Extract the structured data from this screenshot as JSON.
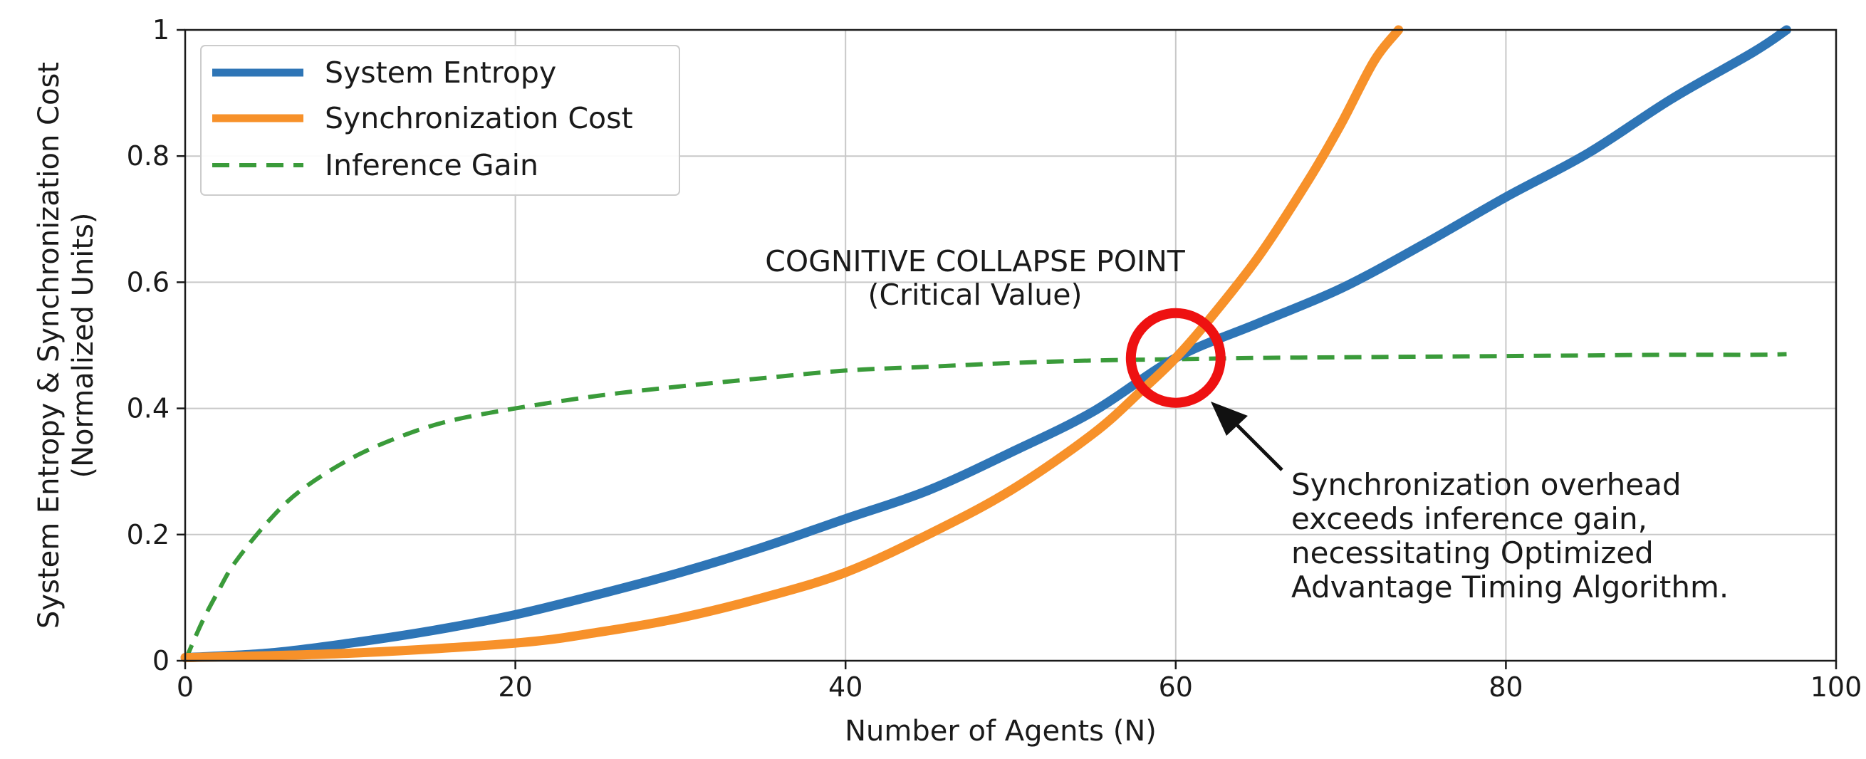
{
  "chart_data": {
    "type": "line",
    "xlabel": "Number of Agents (N)",
    "ylabel_line1": "System Entropy & Synchronization Cost",
    "ylabel_line2": "(Normalized Units)",
    "xlim": [
      0,
      100
    ],
    "ylim": [
      0,
      1
    ],
    "x_ticks": [
      0,
      20,
      40,
      60,
      80,
      100
    ],
    "y_ticks": [
      0,
      0.2,
      0.4,
      0.6,
      0.8,
      1
    ],
    "x_tick_labels": [
      "0",
      "20",
      "40",
      "60",
      "80",
      "100"
    ],
    "y_tick_labels": [
      "0",
      "0.2",
      "0.4",
      "0.6",
      "0.8",
      "1"
    ],
    "grid": true,
    "legend_position": "top-left",
    "series": [
      {
        "name": "System Entropy",
        "color": "#2e75b6",
        "style": "solid",
        "x": [
          0,
          5,
          10,
          15,
          20,
          25,
          30,
          35,
          40,
          45,
          50,
          55,
          60,
          65,
          70,
          75,
          80,
          85,
          90,
          95,
          97
        ],
        "y": [
          0.005,
          0.012,
          0.028,
          0.048,
          0.073,
          0.105,
          0.14,
          0.18,
          0.225,
          0.27,
          0.33,
          0.395,
          0.48,
          0.535,
          0.59,
          0.66,
          0.735,
          0.805,
          0.89,
          0.965,
          1.0
        ]
      },
      {
        "name": "Synchronization Cost",
        "color": "#f7912a",
        "style": "solid",
        "x": [
          0,
          10,
          20,
          25,
          30,
          35,
          40,
          45,
          50,
          55,
          58,
          60,
          62,
          65,
          68,
          70,
          72,
          73.5
        ],
        "y": [
          0.005,
          0.012,
          0.028,
          0.045,
          0.068,
          0.1,
          0.14,
          0.2,
          0.27,
          0.36,
          0.43,
          0.48,
          0.54,
          0.64,
          0.76,
          0.85,
          0.95,
          1.0
        ]
      },
      {
        "name": "Inference Gain",
        "color": "#3a9b3a",
        "style": "dashed",
        "x": [
          0,
          1,
          2,
          3,
          5,
          7,
          10,
          13,
          16,
          20,
          25,
          30,
          35,
          40,
          45,
          50,
          55,
          60,
          65,
          70,
          75,
          80,
          85,
          90,
          95,
          97
        ],
        "y": [
          0.0,
          0.06,
          0.11,
          0.155,
          0.22,
          0.27,
          0.32,
          0.355,
          0.38,
          0.4,
          0.42,
          0.435,
          0.448,
          0.46,
          0.466,
          0.472,
          0.476,
          0.478,
          0.48,
          0.481,
          0.482,
          0.483,
          0.484,
          0.485,
          0.485,
          0.486
        ]
      }
    ],
    "annotations": {
      "collapse_point": {
        "x": 60,
        "y": 0.48,
        "color": "#ee1111"
      },
      "collapse_title": "COGNITIVE COLLAPSE POINT",
      "collapse_subtitle": "(Critical Value)",
      "note_lines": [
        "Synchronization overhead",
        "exceeds inference gain,",
        "necessitating Optimized",
        "Advantage Timing Algorithm."
      ]
    }
  }
}
